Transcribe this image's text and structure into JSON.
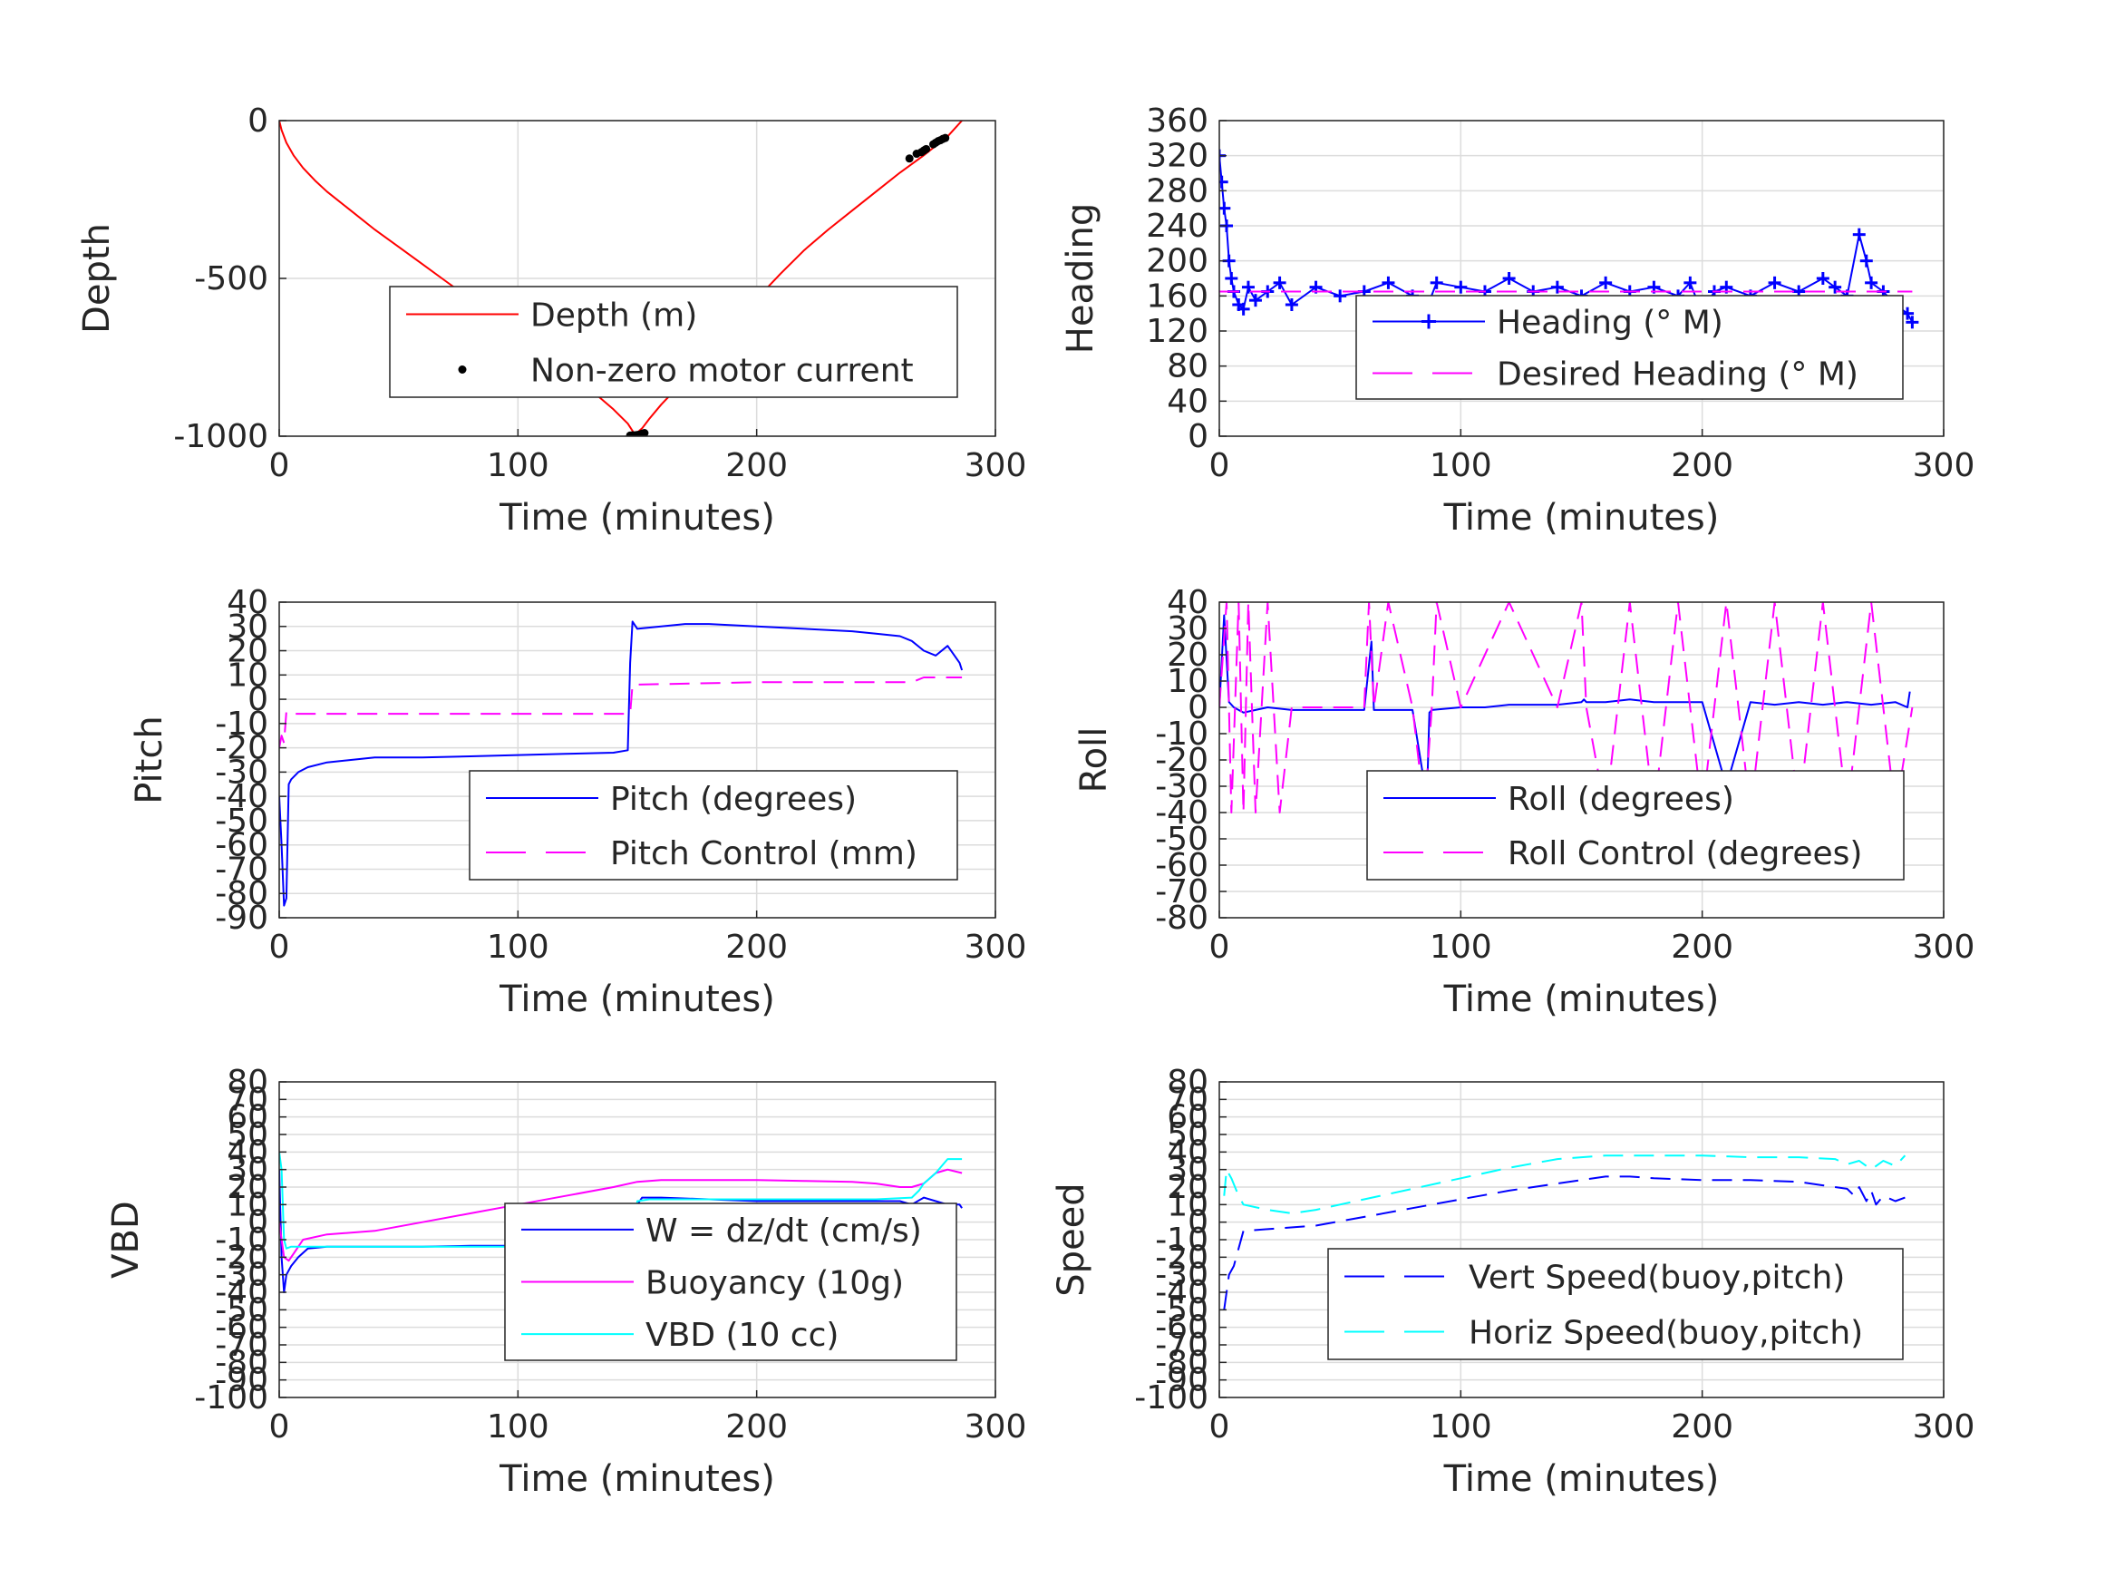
{
  "chart_data": [
    {
      "id": "depth",
      "type": "line",
      "xlabel": "Time (minutes)",
      "ylabel": "Depth",
      "xlim": [
        0,
        300
      ],
      "ylim": [
        -1000,
        0
      ],
      "xticks": [
        0,
        100,
        200,
        300
      ],
      "xtick_labels": [
        "0",
        "100",
        "200",
        "300"
      ],
      "yticks": [
        -1000,
        -500,
        0
      ],
      "ytick_labels": [
        "-1000",
        "-500",
        "0"
      ],
      "grid": true,
      "legend_position": "bottom-right",
      "series": [
        {
          "name": "Depth (m)",
          "color": "#ff0000",
          "style": "solid",
          "x": [
            0,
            1,
            3,
            6,
            10,
            15,
            20,
            30,
            40,
            50,
            60,
            70,
            80,
            90,
            100,
            110,
            120,
            130,
            140,
            146,
            149,
            152,
            155,
            160,
            170,
            180,
            190,
            200,
            210,
            220,
            230,
            240,
            250,
            260,
            270,
            280,
            286
          ],
          "y": [
            0,
            -30,
            -70,
            -110,
            -150,
            -190,
            -225,
            -285,
            -345,
            -400,
            -455,
            -510,
            -565,
            -620,
            -675,
            -730,
            -790,
            -850,
            -915,
            -960,
            -995,
            -975,
            -945,
            -900,
            -820,
            -735,
            -650,
            -565,
            -485,
            -410,
            -345,
            -285,
            -225,
            -165,
            -110,
            -50,
            0
          ]
        },
        {
          "name": "Non-zero motor current",
          "color": "#000000",
          "style": "marker",
          "x": [
            147,
            148,
            149,
            150,
            151,
            152,
            153,
            264,
            267,
            269,
            270,
            271,
            274,
            275,
            276,
            277,
            278,
            279
          ],
          "y": [
            -998,
            -997,
            -997,
            -996,
            -995,
            -992,
            -990,
            -120,
            -105,
            -100,
            -95,
            -90,
            -75,
            -70,
            -65,
            -62,
            -58,
            -55
          ]
        }
      ]
    },
    {
      "id": "heading",
      "type": "line",
      "xlabel": "Time (minutes)",
      "ylabel": "Heading",
      "xlim": [
        0,
        300
      ],
      "ylim": [
        0,
        360
      ],
      "xticks": [
        0,
        100,
        200,
        300
      ],
      "xtick_labels": [
        "0",
        "100",
        "200",
        "300"
      ],
      "yticks": [
        0,
        40,
        80,
        120,
        160,
        200,
        240,
        280,
        320,
        360
      ],
      "ytick_labels": [
        "0",
        "40",
        "80",
        "120",
        "160",
        "200",
        "240",
        "280",
        "320",
        "360"
      ],
      "grid": true,
      "legend_position": "bottom-right",
      "series": [
        {
          "name": "Heading (° M)",
          "color": "#0000ff",
          "style": "marker-line",
          "x": [
            0,
            1,
            2,
            3,
            4,
            5,
            6,
            8,
            10,
            12,
            15,
            20,
            25,
            30,
            40,
            50,
            60,
            70,
            80,
            85,
            90,
            100,
            110,
            120,
            130,
            140,
            150,
            160,
            170,
            180,
            190,
            195,
            200,
            205,
            210,
            220,
            230,
            240,
            250,
            255,
            260,
            265,
            268,
            270,
            275,
            280,
            285,
            287
          ],
          "y": [
            320,
            290,
            260,
            240,
            200,
            180,
            165,
            150,
            145,
            170,
            155,
            165,
            175,
            150,
            170,
            160,
            165,
            175,
            160,
            140,
            175,
            170,
            165,
            180,
            165,
            170,
            160,
            175,
            165,
            170,
            160,
            175,
            140,
            165,
            170,
            160,
            175,
            165,
            180,
            170,
            160,
            230,
            200,
            175,
            165,
            150,
            140,
            130
          ]
        },
        {
          "name": "Desired Heading (° M)",
          "color": "#ff00ff",
          "style": "dashed",
          "x": [
            0,
            287
          ],
          "y": [
            165,
            165
          ]
        }
      ]
    },
    {
      "id": "pitch",
      "type": "line",
      "xlabel": "Time (minutes)",
      "ylabel": "Pitch",
      "xlim": [
        0,
        300
      ],
      "ylim": [
        -90,
        40
      ],
      "xticks": [
        0,
        100,
        200,
        300
      ],
      "xtick_labels": [
        "0",
        "100",
        "200",
        "300"
      ],
      "yticks": [
        -90,
        -80,
        -70,
        -60,
        -50,
        -40,
        -30,
        -20,
        -10,
        0,
        10,
        20,
        30,
        40
      ],
      "ytick_labels": [
        "-90",
        "-80",
        "-70",
        "-60",
        "-50",
        "-40",
        "-30",
        "-20",
        "-10",
        "0",
        "10",
        "20",
        "30",
        "40"
      ],
      "grid": true,
      "legend_position": "bottom-right",
      "series": [
        {
          "name": "Pitch (degrees)",
          "color": "#0000ff",
          "style": "solid",
          "x": [
            0,
            1,
            2,
            3,
            4,
            5,
            8,
            12,
            20,
            30,
            40,
            60,
            80,
            100,
            120,
            140,
            146,
            147,
            148,
            150,
            160,
            170,
            180,
            200,
            220,
            240,
            250,
            260,
            265,
            270,
            275,
            280,
            285,
            286
          ],
          "y": [
            -40,
            -60,
            -85,
            -82,
            -35,
            -33,
            -30,
            -28,
            -26,
            -25,
            -24,
            -24,
            -23.5,
            -23,
            -22.5,
            -22,
            -21,
            15,
            32,
            29,
            30,
            31,
            31,
            30,
            29,
            28,
            27,
            26,
            24,
            20,
            18,
            22,
            15,
            12
          ]
        },
        {
          "name": "Pitch Control (mm)",
          "color": "#ff00ff",
          "style": "dashed",
          "x": [
            0,
            1,
            2,
            3,
            5,
            10,
            50,
            100,
            147,
            148,
            200,
            265,
            270,
            286
          ],
          "y": [
            -20,
            -15,
            -18,
            -5,
            -6,
            -6,
            -6,
            -6,
            -6,
            6,
            7,
            7,
            9,
            9
          ]
        }
      ]
    },
    {
      "id": "roll",
      "type": "line",
      "xlabel": "Time (minutes)",
      "ylabel": "Roll",
      "xlim": [
        0,
        300
      ],
      "ylim": [
        -80,
        40
      ],
      "xticks": [
        0,
        100,
        200,
        300
      ],
      "xtick_labels": [
        "0",
        "100",
        "200",
        "300"
      ],
      "yticks": [
        -80,
        -70,
        -60,
        -50,
        -40,
        -30,
        -20,
        -10,
        0,
        10,
        20,
        30,
        40
      ],
      "ytick_labels": [
        "-80",
        "-70",
        "-60",
        "-50",
        "-40",
        "-30",
        "-20",
        "-10",
        "0",
        "10",
        "20",
        "30",
        "40"
      ],
      "grid": true,
      "legend_position": "bottom-right",
      "series": [
        {
          "name": "Roll (degrees)",
          "color": "#0000ff",
          "style": "solid",
          "x": [
            0,
            2,
            4,
            6,
            10,
            15,
            20,
            30,
            40,
            60,
            63,
            64,
            65,
            80,
            86,
            87,
            88,
            100,
            110,
            120,
            140,
            150,
            151,
            152,
            160,
            170,
            180,
            200,
            210,
            220,
            230,
            240,
            250,
            260,
            270,
            280,
            285,
            286
          ],
          "y": [
            0,
            35,
            2,
            0,
            -2,
            -1,
            0,
            -1,
            -1,
            -1,
            25,
            -1,
            -1,
            -1,
            -35,
            -2,
            -1,
            0,
            0,
            1,
            1,
            2,
            3,
            2,
            2,
            3,
            2,
            2,
            -30,
            2,
            1,
            2,
            1,
            2,
            1,
            2,
            0,
            6
          ]
        },
        {
          "name": "Roll Control (degrees)",
          "color": "#ff00ff",
          "style": "dashed",
          "x": [
            0,
            3,
            5,
            8,
            10,
            12,
            15,
            20,
            25,
            30,
            40,
            60,
            62,
            64,
            70,
            80,
            85,
            88,
            90,
            100,
            120,
            140,
            150,
            152,
            160,
            170,
            180,
            190,
            200,
            210,
            220,
            230,
            240,
            250,
            260,
            270,
            280,
            287
          ],
          "y": [
            0,
            40,
            -40,
            40,
            -40,
            40,
            -40,
            40,
            -40,
            0,
            0,
            0,
            40,
            0,
            40,
            0,
            -40,
            0,
            40,
            0,
            40,
            0,
            40,
            0,
            -40,
            40,
            -40,
            40,
            -40,
            40,
            -40,
            40,
            -40,
            40,
            -40,
            40,
            -40,
            0
          ]
        }
      ]
    },
    {
      "id": "vbd",
      "type": "line",
      "xlabel": "Time (minutes)",
      "ylabel": "VBD",
      "xlim": [
        0,
        300
      ],
      "ylim": [
        -100,
        80
      ],
      "xticks": [
        0,
        100,
        200,
        300
      ],
      "xtick_labels": [
        "0",
        "100",
        "200",
        "300"
      ],
      "yticks": [
        -100,
        -90,
        -80,
        -70,
        -60,
        -50,
        -40,
        -30,
        -20,
        -10,
        0,
        10,
        20,
        30,
        40,
        50,
        60,
        70,
        80
      ],
      "ytick_labels": [
        "-100",
        "-90",
        "-80",
        "-70",
        "-60",
        "-50",
        "-40",
        "-30",
        "-20",
        "-10",
        "0",
        "10",
        "20",
        "30",
        "40",
        "50",
        "60",
        "70",
        "80"
      ],
      "grid": true,
      "legend_position": "bottom-right",
      "series": [
        {
          "name": "W = dz/dt (cm/s)",
          "color": "#0000ff",
          "style": "solid",
          "x": [
            0,
            1,
            2,
            3,
            5,
            8,
            12,
            20,
            40,
            60,
            80,
            100,
            120,
            148,
            150,
            152,
            160,
            180,
            200,
            220,
            240,
            260,
            265,
            270,
            275,
            280,
            285,
            286
          ],
          "y": [
            30,
            -20,
            -40,
            -30,
            -25,
            -20,
            -15,
            -14,
            -14,
            -14,
            -13.5,
            -13.5,
            -13,
            -13,
            10,
            14,
            14,
            13,
            12,
            12,
            12,
            12,
            10,
            14,
            12,
            10,
            10,
            8
          ]
        },
        {
          "name": "Buoyancy (10g)",
          "color": "#ff00ff",
          "style": "solid",
          "x": [
            0,
            2,
            4,
            6,
            10,
            20,
            40,
            60,
            80,
            100,
            120,
            140,
            150,
            160,
            180,
            200,
            220,
            240,
            250,
            260,
            265,
            270,
            275,
            280,
            286
          ],
          "y": [
            0,
            -20,
            -22,
            -18,
            -10,
            -7,
            -5,
            0,
            5,
            10,
            15,
            20,
            23,
            24,
            24,
            24,
            23.5,
            23,
            22,
            20,
            20,
            22,
            28,
            30,
            28
          ]
        },
        {
          "name": "VBD (10 cc)",
          "color": "#00ffff",
          "style": "solid",
          "x": [
            0,
            1,
            2,
            3,
            5,
            10,
            20,
            60,
            100,
            148,
            150,
            155,
            200,
            250,
            265,
            268,
            270,
            275,
            280,
            286
          ],
          "y": [
            40,
            30,
            -10,
            -15,
            -14,
            -14,
            -14,
            -14,
            -14,
            -14,
            12,
            13,
            13,
            13,
            14,
            18,
            22,
            28,
            36,
            36
          ]
        }
      ]
    },
    {
      "id": "speed",
      "type": "line",
      "xlabel": "Time (minutes)",
      "ylabel": "Speed",
      "xlim": [
        0,
        300
      ],
      "ylim": [
        -100,
        80
      ],
      "xticks": [
        0,
        100,
        200,
        300
      ],
      "xtick_labels": [
        "0",
        "100",
        "200",
        "300"
      ],
      "yticks": [
        -100,
        -90,
        -80,
        -70,
        -60,
        -50,
        -40,
        -30,
        -20,
        -10,
        0,
        10,
        20,
        30,
        40,
        50,
        60,
        70,
        80
      ],
      "ytick_labels": [
        "-100",
        "-90",
        "-80",
        "-70",
        "-60",
        "-50",
        "-40",
        "-30",
        "-20",
        "-10",
        "0",
        "10",
        "20",
        "30",
        "40",
        "50",
        "60",
        "70",
        "80"
      ],
      "grid": true,
      "legend_position": "bottom-right",
      "series": [
        {
          "name": "Vert Speed(buoy,pitch)",
          "color": "#0000ff",
          "style": "dashed",
          "x": [
            2,
            4,
            6,
            10,
            20,
            40,
            60,
            80,
            100,
            120,
            140,
            160,
            170,
            180,
            200,
            220,
            240,
            250,
            255,
            260,
            263,
            265,
            268,
            270,
            272,
            275,
            280,
            284
          ],
          "y": [
            -50,
            -30,
            -25,
            -5,
            -4,
            -2,
            3,
            8,
            13,
            18,
            22,
            26,
            26,
            25,
            24,
            24,
            23,
            21,
            20,
            19,
            15,
            20,
            12,
            18,
            10,
            15,
            12,
            14
          ]
        },
        {
          "name": "Horiz Speed(buoy,pitch)",
          "color": "#00ffff",
          "style": "dashed",
          "x": [
            2,
            3,
            5,
            8,
            10,
            20,
            30,
            40,
            60,
            80,
            100,
            120,
            140,
            160,
            180,
            200,
            220,
            240,
            255,
            260,
            265,
            270,
            275,
            280,
            284
          ],
          "y": [
            15,
            30,
            25,
            15,
            10,
            7,
            5,
            7,
            13,
            19,
            25,
            31,
            36,
            38,
            38,
            38,
            37,
            37,
            36,
            33,
            35,
            30,
            35,
            32,
            38
          ]
        }
      ]
    }
  ]
}
